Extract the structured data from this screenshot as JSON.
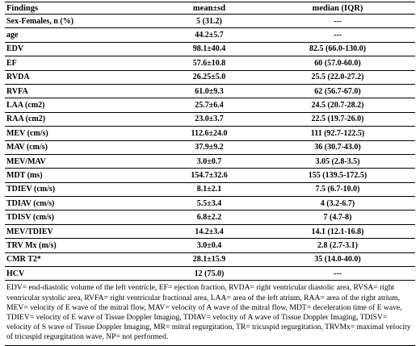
{
  "table": {
    "headers": [
      "Findings",
      "mean±sd",
      "median (IQR)"
    ],
    "rows": [
      [
        "Sex-Females, n (%)",
        "5 (31.2)",
        "---"
      ],
      [
        "age",
        "44.2±5.7",
        "---"
      ],
      [
        "EDV",
        "98.1±40.4",
        "82.5 (66.0-130.0)"
      ],
      [
        "EF",
        "57.6±10.8",
        "60 (57.0-60.0)"
      ],
      [
        "RVDA",
        "26.25±5.0",
        "25.5 (22.0-27.2)"
      ],
      [
        "RVFA",
        "61.0±9.3",
        "62 (56.7-67.0)"
      ],
      [
        "LAA (cm2)",
        "25.7±6.4",
        "24.5 (20.7-28.2)"
      ],
      [
        "RAA (cm2)",
        "23.0±3.7",
        "22.5 (19.7-26.0)"
      ],
      [
        "MEV (cm/s)",
        "112.6±24.0",
        "111 (92.7-122.5)"
      ],
      [
        "MAV (cm/s)",
        "37.9±9.2",
        "36 (30.7-43.0)"
      ],
      [
        "MEV/MAV",
        "3.0±0.7",
        "3.05 (2.8-3.5)"
      ],
      [
        "MDT (ms)",
        "154.7±32.6",
        "155 (139.5-172.5)"
      ],
      [
        "TDIEV (cm/s)",
        "8.1±2.1",
        "7.5 (6.7-10.0)"
      ],
      [
        "TDIAV (cm/s)",
        "5.5±3.4",
        "4 (3.2-6.7)"
      ],
      [
        "TDISV (cm/s)",
        "6.8±2.2",
        "7 (4.7-8)"
      ],
      [
        "MEV/TDIEV",
        "14.2±3.4",
        "14.1 (12.1-16.8)"
      ],
      [
        "TRV Mx (m/s)",
        "3.0±0.4",
        "2.8 (2.7-3.1)"
      ],
      [
        "CMR T2*",
        "28.1±15.9",
        "35 (14.0-40.0)"
      ],
      [
        "HCV",
        "12 (75.0)",
        "---"
      ]
    ],
    "footnote": "EDV= end-diastolic volume of the left ventricle, EF= ejection fraction, RVDA= right ventricular diastolic area, RVSA= right ventricular systolic area, RVFA= right ventricular fractional area, LAA= area of the left atrium, RAA= area of the right atrium, MEV= velocity of E wave of the mitral flow, MAV= velocity of A wave of the mitral flow, MDT= deceleration time of E wave, TDIEV= velocity of E wave of Tissue Doppler Imaging, TDIAV= velocity of A wave of Tissue Doppler Imaging, TDISV= velocity of S wave of Tissue Doppler Imaging, MR= mitral regurgitation, TR= tricuspid regurgitation, TRVMx= maximal velocity of tricuspid regurgitation wave, NP= not performed."
  }
}
